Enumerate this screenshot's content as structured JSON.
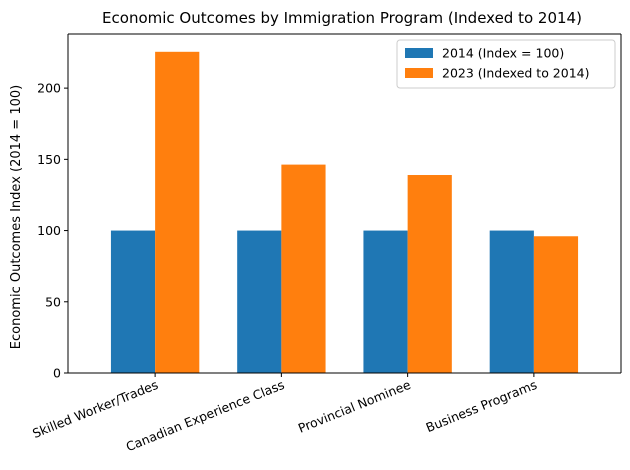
{
  "chart_data": {
    "type": "bar",
    "title": "Economic Outcomes by Immigration Program (Indexed to 2014)",
    "xlabel": "",
    "ylabel": "Economic Outcomes Index (2014 = 100)",
    "categories": [
      "Skilled Worker/Trades",
      "Canadian Experience Class",
      "Provincial Nominee",
      "Business Programs"
    ],
    "series": [
      {
        "name": "2014 (Index = 100)",
        "values": [
          100,
          100,
          100,
          100
        ],
        "color": "#1f77b4"
      },
      {
        "name": "2023 (Indexed to 2014)",
        "values": [
          225.5,
          146.3,
          139.0,
          96.0
        ],
        "color": "#ff7f0e"
      }
    ],
    "ylim": [
      0,
      238
    ],
    "yticks": [
      "0",
      "50",
      "100",
      "150",
      "200"
    ],
    "yticks_values": [
      0,
      50,
      100,
      150,
      200
    ],
    "legend": "top-right",
    "grid": false,
    "xtick_rotation": -22
  }
}
